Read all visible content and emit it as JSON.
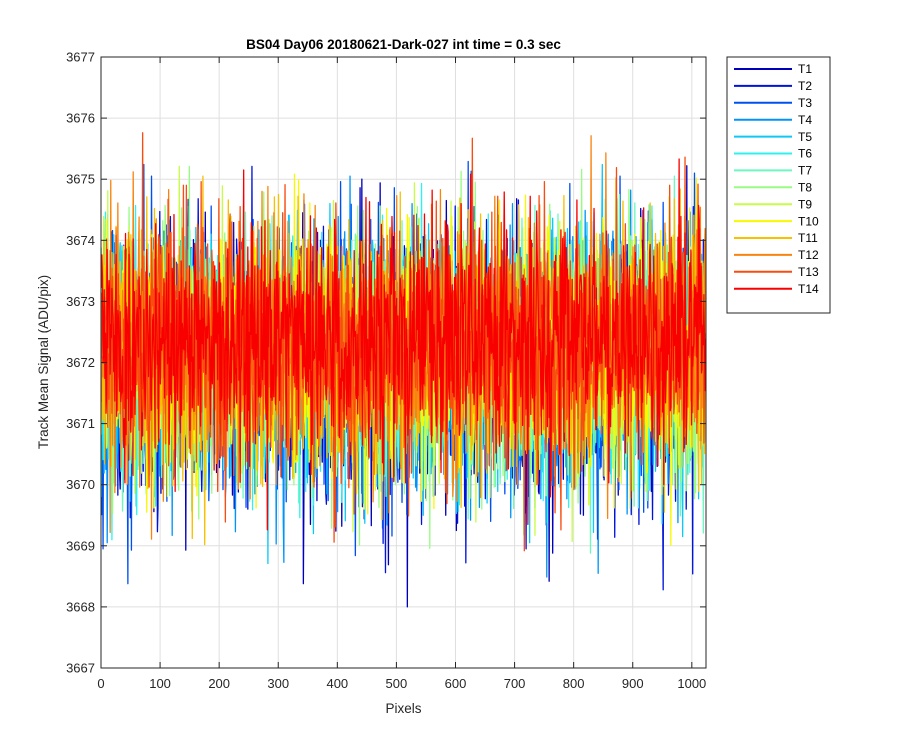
{
  "chart_data": {
    "type": "line",
    "title": "BS04 Day06 20180621-Dark-027 int time = 0.3 sec",
    "xlabel": "Pixels",
    "ylabel": "Track Mean Signal (ADU/pix)",
    "xlim": [
      0,
      1024
    ],
    "ylim": [
      3667,
      3677
    ],
    "xticks": [
      0,
      100,
      200,
      300,
      400,
      500,
      600,
      700,
      800,
      900,
      1000
    ],
    "yticks": [
      3667,
      3668,
      3669,
      3670,
      3671,
      3672,
      3673,
      3674,
      3675,
      3676,
      3677
    ],
    "grid": true,
    "legend_position": "outside-top-right",
    "n_points": 1024,
    "series": [
      {
        "name": "T1",
        "color": "#0000b8",
        "mean": 3671.9,
        "sd": 1.05,
        "values": []
      },
      {
        "name": "T2",
        "color": "#0014d8",
        "mean": 3671.95,
        "sd": 1.05,
        "values": []
      },
      {
        "name": "T3",
        "color": "#0050f0",
        "mean": 3672.0,
        "sd": 1.05,
        "values": []
      },
      {
        "name": "T4",
        "color": "#0094f8",
        "mean": 3672.0,
        "sd": 1.05,
        "values": []
      },
      {
        "name": "T5",
        "color": "#10c8f8",
        "mean": 3672.05,
        "sd": 1.05,
        "values": []
      },
      {
        "name": "T6",
        "color": "#30f0f0",
        "mean": 3672.05,
        "sd": 1.0,
        "values": []
      },
      {
        "name": "T7",
        "color": "#6cf8c0",
        "mean": 3672.1,
        "sd": 1.0,
        "values": []
      },
      {
        "name": "T8",
        "color": "#98fc84",
        "mean": 3672.1,
        "sd": 1.0,
        "values": []
      },
      {
        "name": "T9",
        "color": "#c8fc48",
        "mean": 3672.15,
        "sd": 1.0,
        "values": []
      },
      {
        "name": "T10",
        "color": "#f8f800",
        "mean": 3672.2,
        "sd": 1.0,
        "values": []
      },
      {
        "name": "T11",
        "color": "#f8c000",
        "mean": 3672.25,
        "sd": 1.0,
        "values": []
      },
      {
        "name": "T12",
        "color": "#f88410",
        "mean": 3672.3,
        "sd": 1.0,
        "values": []
      },
      {
        "name": "T13",
        "color": "#f84c10",
        "mean": 3672.35,
        "sd": 1.0,
        "values": []
      },
      {
        "name": "T14",
        "color": "#f80000",
        "mean": 3672.4,
        "sd": 0.95,
        "values": []
      }
    ]
  }
}
